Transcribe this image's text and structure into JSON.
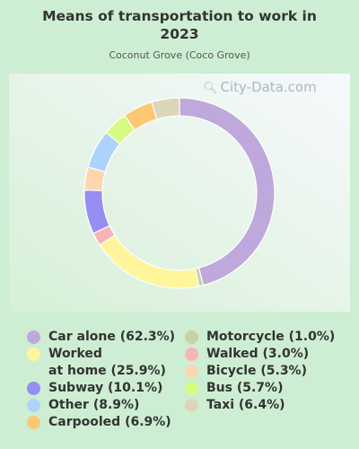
{
  "title": "Means of transportation to work in 2023",
  "subtitle": "Coconut Grove (Coco Grove)",
  "watermark": "City-Data.com",
  "watermark_icon": "magnifier-icon",
  "chart_data": {
    "type": "pie",
    "variant": "donut",
    "title": "Means of transportation to work in 2023",
    "subtitle": "Coconut Grove (Coco Grove)",
    "slices": [
      {
        "label": "Car alone",
        "value": 62.3,
        "color": "#bea8dc",
        "legend": "Car alone (62.3%)"
      },
      {
        "label": "Motorcycle",
        "value": 1.0,
        "color": "#c4d3a8",
        "legend": "Motorcycle (1.0%)"
      },
      {
        "label": "Worked at home",
        "value": 25.9,
        "color": "#fff59a",
        "legend_lines": [
          "Worked",
          "at home (25.9%)"
        ]
      },
      {
        "label": "Walked",
        "value": 3.0,
        "color": "#f6b4b8",
        "legend": "Walked (3.0%)"
      },
      {
        "label": "Subway",
        "value": 10.1,
        "color": "#968ef0",
        "legend": "Subway (10.1%)"
      },
      {
        "label": "Bicycle",
        "value": 5.3,
        "color": "#fdd6b0",
        "legend": "Bicycle (5.3%)"
      },
      {
        "label": "Other",
        "value": 8.9,
        "color": "#acd4fb",
        "legend": "Other (8.9%)"
      },
      {
        "label": "Bus",
        "value": 5.7,
        "color": "#d9fa80",
        "legend": "Bus (5.7%)"
      },
      {
        "label": "Carpooled",
        "value": 6.9,
        "color": "#fdc774",
        "legend": "Carpooled (6.9%)"
      },
      {
        "label": "Taxi",
        "value": 6.4,
        "color": "#dcd6b8",
        "legend": "Taxi (6.4%)"
      }
    ],
    "legend_placement": "bottom",
    "legend_columns": [
      [
        "Car alone",
        "Worked at home",
        "Subway",
        "Other",
        "Carpooled"
      ],
      [
        "Motorcycle",
        "Walked",
        "Bicycle",
        "Bus",
        "Taxi"
      ]
    ]
  }
}
